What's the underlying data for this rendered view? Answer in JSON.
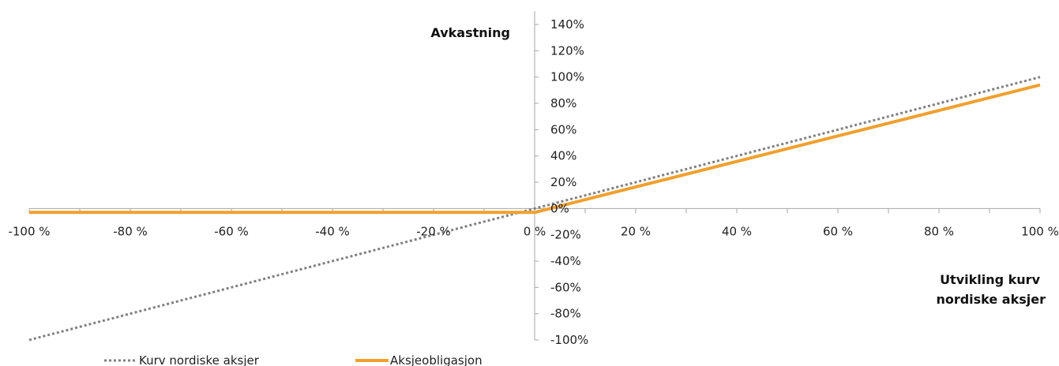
{
  "chart_data": {
    "type": "line",
    "y_axis_title": "Avkastning",
    "x_axis_title_lines": [
      "Utvikling kurv",
      "nordiske aksjer"
    ],
    "xlim": [
      -100,
      100
    ],
    "ylim": [
      -100,
      140
    ],
    "x_ticks": [
      -100,
      -80,
      -60,
      -40,
      -20,
      0,
      20,
      40,
      60,
      80,
      100
    ],
    "x_tick_labels": [
      "-100 %",
      "-80 %",
      "-60 %",
      "-40 %",
      "-20 %",
      "0 %",
      "20 %",
      "40 %",
      "60 %",
      "80 %",
      "100 %"
    ],
    "y_ticks": [
      140,
      120,
      100,
      80,
      60,
      40,
      20,
      0,
      -20,
      -40,
      -60,
      -80,
      -100
    ],
    "y_tick_labels": [
      "140%",
      "120%",
      "100%",
      "80%",
      "60%",
      "40%",
      "20%",
      "0%",
      "-20%",
      "-40%",
      "-60%",
      "-80%",
      "-100%"
    ],
    "grid": false,
    "legend_position": "bottom-left",
    "series": [
      {
        "name": "Kurv nordiske aksjer",
        "style": "dotted",
        "color": "#808080",
        "x": [
          -100,
          100
        ],
        "y": [
          -100,
          100
        ]
      },
      {
        "name": "Aksjeobligasjon",
        "style": "solid",
        "color": "#F0A030",
        "x": [
          -100,
          0,
          100
        ],
        "y": [
          -3,
          -3,
          94
        ]
      }
    ]
  }
}
